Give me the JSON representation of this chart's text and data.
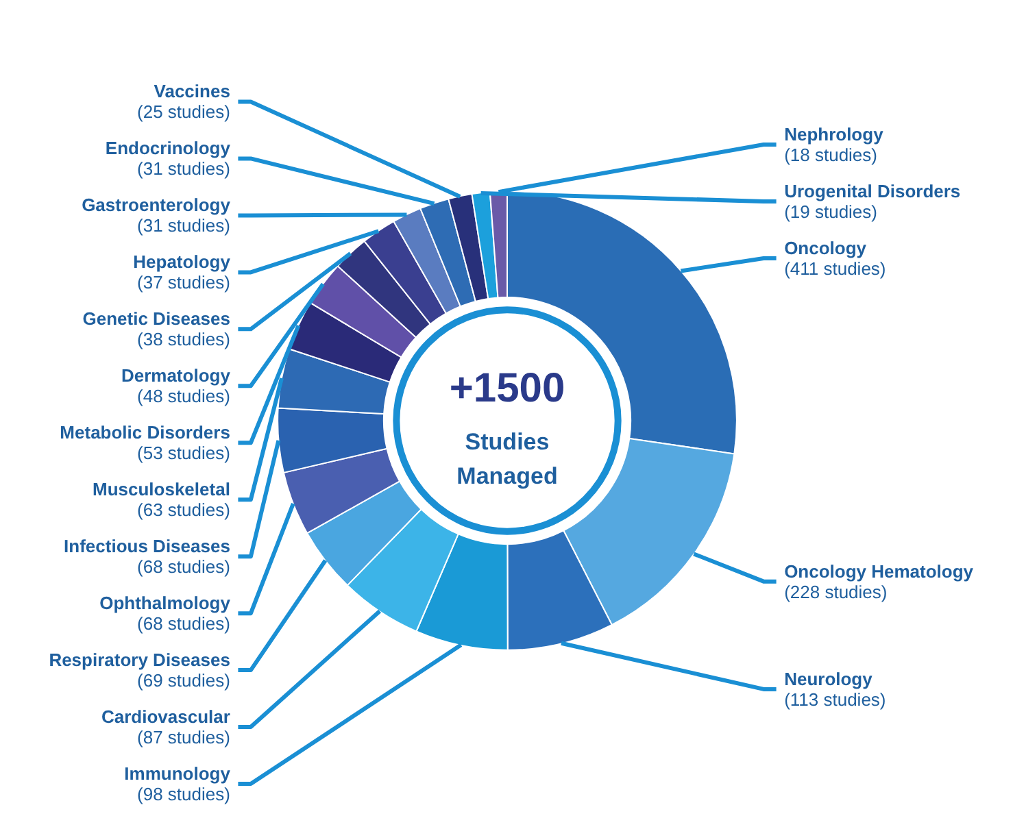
{
  "chart_data": {
    "type": "donut",
    "categories": [
      "Oncology",
      "Oncology Hematology",
      "Neurology",
      "Immunology",
      "Cardiovascular",
      "Respiratory Diseases",
      "Ophthalmology",
      "Infectious Diseases",
      "Musculoskeletal",
      "Metabolic Disorders",
      "Dermatology",
      "Genetic Diseases",
      "Hepatology",
      "Gastroenterology",
      "Endocrinology",
      "Vaccines",
      "Urogenital Disorders",
      "Nephrology"
    ],
    "values": [
      411,
      228,
      113,
      98,
      87,
      69,
      68,
      68,
      63,
      53,
      48,
      38,
      37,
      31,
      31,
      25,
      19,
      18
    ],
    "value_labels": [
      "(411 studies)",
      "(228 studies)",
      "(113 studies)",
      "(98 studies)",
      "(87 studies)",
      "(69 studies)",
      "(68 studies)",
      "(68 studies)",
      "(63 studies)",
      "(53 studies)",
      "(48 studies)",
      "(38 studies)",
      "(37 studies)",
      "(31 studies)",
      "(31 studies)",
      "(25 studies)",
      "(19 studies)",
      "(18 studies)"
    ],
    "colors": [
      "#2a6db5",
      "#55a8e0",
      "#2c70bb",
      "#1a9ad6",
      "#3cb4e8",
      "#4aa6e0",
      "#4a5fb0",
      "#2a62b0",
      "#2d6ab4",
      "#2a2a78",
      "#6050a8",
      "#30357e",
      "#3a3f90",
      "#5a7cc0",
      "#2e6cb4",
      "#28307a",
      "#1ca0dc",
      "#6a5aa8"
    ],
    "annotations": [
      "+1500",
      "Studies Managed"
    ]
  }
}
